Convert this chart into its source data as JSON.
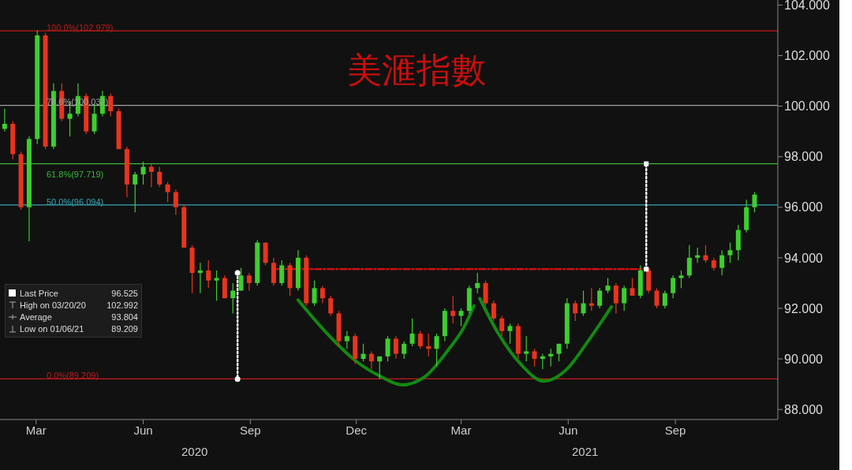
{
  "chart_data": {
    "type": "candlestick",
    "title": "美滙指數",
    "x": [
      "2020-02-17",
      "2020-02-24",
      "2020-03-02",
      "2020-03-09",
      "2020-03-16",
      "2020-03-23",
      "2020-03-30",
      "2020-04-06",
      "2020-04-13",
      "2020-04-20",
      "2020-04-27",
      "2020-05-04",
      "2020-05-11",
      "2020-05-18",
      "2020-05-25",
      "2020-06-01",
      "2020-06-08",
      "2020-06-15",
      "2020-06-22",
      "2020-06-29",
      "2020-07-06",
      "2020-07-13",
      "2020-07-20",
      "2020-07-27",
      "2020-08-03",
      "2020-08-10",
      "2020-08-17",
      "2020-08-24",
      "2020-08-31",
      "2020-09-07",
      "2020-09-14",
      "2020-09-21",
      "2020-09-28",
      "2020-10-05",
      "2020-10-12",
      "2020-10-19",
      "2020-10-26",
      "2020-11-02",
      "2020-11-09",
      "2020-11-16",
      "2020-11-23",
      "2020-11-30",
      "2020-12-07",
      "2020-12-14",
      "2020-12-21",
      "2020-12-28",
      "2021-01-04",
      "2021-01-11",
      "2021-01-18",
      "2021-01-25",
      "2021-02-01",
      "2021-02-08",
      "2021-02-15",
      "2021-02-22",
      "2021-03-01",
      "2021-03-08",
      "2021-03-15",
      "2021-03-22",
      "2021-03-29",
      "2021-04-05",
      "2021-04-12",
      "2021-04-19",
      "2021-04-26",
      "2021-05-03",
      "2021-05-10",
      "2021-05-17",
      "2021-05-24",
      "2021-05-31",
      "2021-06-07",
      "2021-06-14",
      "2021-06-21",
      "2021-06-28",
      "2021-07-05",
      "2021-07-12",
      "2021-07-19",
      "2021-07-26",
      "2021-08-02",
      "2021-08-09",
      "2021-08-16",
      "2021-08-23",
      "2021-08-30",
      "2021-09-06",
      "2021-09-13",
      "2021-09-20",
      "2021-09-27",
      "2021-10-04",
      "2021-10-11",
      "2021-10-18",
      "2021-10-25",
      "2021-11-01",
      "2021-11-08",
      "2021-11-15",
      "2021-11-22"
    ],
    "ohlc": [
      [
        99.1,
        99.9,
        99.0,
        99.3
      ],
      [
        99.3,
        99.4,
        97.9,
        98.1
      ],
      [
        98.1,
        98.2,
        95.9,
        96.0
      ],
      [
        96.0,
        98.8,
        94.65,
        98.7
      ],
      [
        98.7,
        102.99,
        98.5,
        102.8
      ],
      [
        102.8,
        102.9,
        98.3,
        98.4
      ],
      [
        98.4,
        100.9,
        98.3,
        100.6
      ],
      [
        100.6,
        100.9,
        99.4,
        99.5
      ],
      [
        99.5,
        100.2,
        98.8,
        99.7
      ],
      [
        99.7,
        100.9,
        99.6,
        100.4
      ],
      [
        100.4,
        100.5,
        98.9,
        99.0
      ],
      [
        99.0,
        100.1,
        98.9,
        99.7
      ],
      [
        99.7,
        100.6,
        99.6,
        100.4
      ],
      [
        100.4,
        100.5,
        99.6,
        99.8
      ],
      [
        99.8,
        99.9,
        98.3,
        98.3
      ],
      [
        98.3,
        98.4,
        96.4,
        96.9
      ],
      [
        96.9,
        97.4,
        95.8,
        97.3
      ],
      [
        97.3,
        97.8,
        96.9,
        97.6
      ],
      [
        97.6,
        97.7,
        96.8,
        97.4
      ],
      [
        97.4,
        97.6,
        96.8,
        96.9
      ],
      [
        96.9,
        97.0,
        96.2,
        96.6
      ],
      [
        96.6,
        96.7,
        95.7,
        96.0
      ],
      [
        96.0,
        96.1,
        94.4,
        94.4
      ],
      [
        94.4,
        94.5,
        92.6,
        93.4
      ],
      [
        93.4,
        93.8,
        92.6,
        93.5
      ],
      [
        93.5,
        93.9,
        92.8,
        93.1
      ],
      [
        93.1,
        93.5,
        92.3,
        93.2
      ],
      [
        93.2,
        93.3,
        92.4,
        92.4
      ],
      [
        92.4,
        93.0,
        91.8,
        92.7
      ],
      [
        92.7,
        93.6,
        92.7,
        93.3
      ],
      [
        93.3,
        93.4,
        92.7,
        93.0
      ],
      [
        93.0,
        94.7,
        92.9,
        94.6
      ],
      [
        94.6,
        94.6,
        93.7,
        93.8
      ],
      [
        93.8,
        94.0,
        92.9,
        93.0
      ],
      [
        93.0,
        93.9,
        92.9,
        93.7
      ],
      [
        93.7,
        93.8,
        92.5,
        92.8
      ],
      [
        92.8,
        94.3,
        92.7,
        94.0
      ],
      [
        94.0,
        94.1,
        92.1,
        92.2
      ],
      [
        92.2,
        93.1,
        92.1,
        92.8
      ],
      [
        92.8,
        92.9,
        92.2,
        92.4
      ],
      [
        92.4,
        92.5,
        91.7,
        91.8
      ],
      [
        91.8,
        91.9,
        90.5,
        90.7
      ],
      [
        90.7,
        91.1,
        90.4,
        90.9
      ],
      [
        90.9,
        91.0,
        89.8,
        90.0
      ],
      [
        90.0,
        90.6,
        89.9,
        90.2
      ],
      [
        90.2,
        90.3,
        89.6,
        89.9
      ],
      [
        89.9,
        90.1,
        89.21,
        90.1
      ],
      [
        90.1,
        90.9,
        89.9,
        90.8
      ],
      [
        90.8,
        90.9,
        90.0,
        90.2
      ],
      [
        90.2,
        90.7,
        90.0,
        90.6
      ],
      [
        90.6,
        91.6,
        90.5,
        91.0
      ],
      [
        91.0,
        91.1,
        90.4,
        90.5
      ],
      [
        90.5,
        91.0,
        90.1,
        90.4
      ],
      [
        90.4,
        91.0,
        89.7,
        90.9
      ],
      [
        90.9,
        92.0,
        90.7,
        91.9
      ],
      [
        91.9,
        92.5,
        91.4,
        91.7
      ],
      [
        91.7,
        92.0,
        91.3,
        91.9
      ],
      [
        91.9,
        92.9,
        91.8,
        92.8
      ],
      [
        92.8,
        93.4,
        92.6,
        93.0
      ],
      [
        93.0,
        93.1,
        92.1,
        92.2
      ],
      [
        92.2,
        92.3,
        91.5,
        91.6
      ],
      [
        91.6,
        91.7,
        90.9,
        91.1
      ],
      [
        91.1,
        91.4,
        90.6,
        91.3
      ],
      [
        91.3,
        91.4,
        90.0,
        90.2
      ],
      [
        90.2,
        90.9,
        89.9,
        90.3
      ],
      [
        90.3,
        90.4,
        89.7,
        90.0
      ],
      [
        90.0,
        90.2,
        89.6,
        90.1
      ],
      [
        90.1,
        90.4,
        89.7,
        90.2
      ],
      [
        90.2,
        90.6,
        89.9,
        90.6
      ],
      [
        90.6,
        92.4,
        90.4,
        92.2
      ],
      [
        92.2,
        92.3,
        91.5,
        91.8
      ],
      [
        91.8,
        92.7,
        91.7,
        92.2
      ],
      [
        92.2,
        92.8,
        91.9,
        92.1
      ],
      [
        92.1,
        92.8,
        92.0,
        92.7
      ],
      [
        92.7,
        93.2,
        92.6,
        92.9
      ],
      [
        92.9,
        93.0,
        91.8,
        92.2
      ],
      [
        92.2,
        92.9,
        91.9,
        92.8
      ],
      [
        92.8,
        93.2,
        92.5,
        92.5
      ],
      [
        92.5,
        93.7,
        92.4,
        93.5
      ],
      [
        93.5,
        93.6,
        92.6,
        92.7
      ],
      [
        92.7,
        92.8,
        92.0,
        92.1
      ],
      [
        92.1,
        92.7,
        92.0,
        92.6
      ],
      [
        92.6,
        93.3,
        92.4,
        93.2
      ],
      [
        93.2,
        93.5,
        92.8,
        93.3
      ],
      [
        93.3,
        94.5,
        93.2,
        94.0
      ],
      [
        94.0,
        94.4,
        93.8,
        94.1
      ],
      [
        94.1,
        94.5,
        93.8,
        93.9
      ],
      [
        93.9,
        94.0,
        93.5,
        93.6
      ],
      [
        93.6,
        94.3,
        93.3,
        94.1
      ],
      [
        94.1,
        94.6,
        93.8,
        94.3
      ],
      [
        94.3,
        95.3,
        93.9,
        95.1
      ],
      [
        95.1,
        96.3,
        95.0,
        96.0
      ],
      [
        96.0,
        96.6,
        95.8,
        96.5
      ]
    ],
    "colors": [
      "#3ccf2e",
      "#e8341c",
      "#e8341c",
      "#3ccf2e",
      "#3ccf2e",
      "#e8341c",
      "#3ccf2e",
      "#e8341c",
      "#3ccf2e",
      "#3ccf2e",
      "#e8341c",
      "#3ccf2e",
      "#3ccf2e",
      "#e8341c",
      "#e8341c",
      "#e8341c",
      "#3ccf2e",
      "#3ccf2e",
      "#e8341c",
      "#e8341c",
      "#e8341c",
      "#e8341c",
      "#e8341c",
      "#e8341c",
      "#3ccf2e",
      "#e8341c",
      "#3ccf2e",
      "#e8341c",
      "#3ccf2e",
      "#3ccf2e",
      "#e8341c",
      "#3ccf2e",
      "#e8341c",
      "#e8341c",
      "#3ccf2e",
      "#e8341c",
      "#3ccf2e",
      "#e8341c",
      "#3ccf2e",
      "#e8341c",
      "#e8341c",
      "#e8341c",
      "#3ccf2e",
      "#e8341c",
      "#3ccf2e",
      "#e8341c",
      "#3ccf2e",
      "#3ccf2e",
      "#e8341c",
      "#3ccf2e",
      "#3ccf2e",
      "#e8341c",
      "#e8341c",
      "#3ccf2e",
      "#3ccf2e",
      "#e8341c",
      "#3ccf2e",
      "#3ccf2e",
      "#3ccf2e",
      "#e8341c",
      "#e8341c",
      "#e8341c",
      "#3ccf2e",
      "#e8341c",
      "#3ccf2e",
      "#e8341c",
      "#3ccf2e",
      "#3ccf2e",
      "#3ccf2e",
      "#3ccf2e",
      "#e8341c",
      "#3ccf2e",
      "#e8341c",
      "#3ccf2e",
      "#3ccf2e",
      "#e8341c",
      "#3ccf2e",
      "#e8341c",
      "#3ccf2e",
      "#e8341c",
      "#e8341c",
      "#3ccf2e",
      "#3ccf2e",
      "#3ccf2e",
      "#3ccf2e",
      "#3ccf2e",
      "#e8341c",
      "#e8341c",
      "#3ccf2e",
      "#3ccf2e",
      "#3ccf2e",
      "#3ccf2e",
      "#3ccf2e"
    ],
    "series": [
      {
        "type": "line",
        "x": [
          "2020-10-08",
          "2021-08-24"
        ],
        "values": [
          93.55,
          93.55
        ],
        "color": "#cc1111",
        "line_style": "dashed",
        "marker": "none"
      },
      {
        "type": "line",
        "x": [
          "2020-09-04",
          "2020-09-04"
        ],
        "values": [
          93.4,
          89.2
        ],
        "color": "#ffffff",
        "line_style": "dotted",
        "marker": "circle"
      },
      {
        "type": "line",
        "x": [
          "2021-08-21",
          "2021-08-21"
        ],
        "values": [
          93.55,
          97.72
        ],
        "color": "#ffffff",
        "line_style": "dotted",
        "marker": "square"
      },
      {
        "type": "line",
        "x": [
          "2020-10-26",
          "2020-11-20",
          "2020-12-15",
          "2021-01-05",
          "2021-01-23",
          "2021-02-12",
          "2021-03-03",
          "2021-03-18",
          "2021-03-26"
        ],
        "values": [
          92.33,
          91.0,
          89.9,
          89.3,
          88.97,
          89.3,
          90.3,
          91.3,
          92.1
        ],
        "color": "#128a12",
        "line_style": "solid",
        "marker": "none"
      },
      {
        "type": "line",
        "x": [
          "2021-03-31",
          "2021-04-16",
          "2021-05-05",
          "2021-05-25",
          "2021-06-14",
          "2021-07-02",
          "2021-07-22"
        ],
        "values": [
          92.39,
          91.0,
          89.8,
          89.12,
          89.6,
          90.7,
          92.06
        ],
        "color": "#128a12",
        "line_style": "solid",
        "marker": "none"
      }
    ],
    "ref_lines": [
      {
        "axis": "y",
        "value": 102.979,
        "label": "100.0%(102.979)",
        "color": "#c41a1a"
      },
      {
        "axis": "y",
        "value": 100.032,
        "label": "78.6%(100.032)",
        "color": "#a0a0a0"
      },
      {
        "axis": "y",
        "value": 97.719,
        "label": "61.8%(97.719)",
        "color": "#3cb83c"
      },
      {
        "axis": "y",
        "value": 96.094,
        "label": "50.0%(96.094)",
        "color": "#3aa6b8"
      },
      {
        "axis": "y",
        "value": 89.209,
        "label": "0.0%(89.209)",
        "color": "#c41a1a"
      }
    ],
    "annotations": [
      "2020",
      "2021",
      "Last Price",
      "96.525",
      "High on 03/20/20",
      "102.992",
      "Average",
      "93.804",
      "Low on 01/06/21",
      "89.209"
    ],
    "xlim": [
      "2020-02-13",
      "2021-12-12"
    ],
    "xticks": [
      {
        "value": "2020-03-15",
        "label": "Mar"
      },
      {
        "value": "2020-06-15",
        "label": "Jun"
      },
      {
        "value": "2020-09-15",
        "label": "Sep"
      },
      {
        "value": "2020-12-15",
        "label": "Dec"
      },
      {
        "value": "2021-03-15",
        "label": "Mar"
      },
      {
        "value": "2021-06-15",
        "label": "Jun"
      },
      {
        "value": "2021-09-15",
        "label": "Sep"
      }
    ],
    "ylim": [
      87.6,
      104.2
    ],
    "yticks": [
      {
        "value": 88,
        "label": "88.000"
      },
      {
        "value": 90,
        "label": "90.000"
      },
      {
        "value": 92,
        "label": "92.000"
      },
      {
        "value": 94,
        "label": "94.000"
      },
      {
        "value": 96,
        "label": "96.000"
      },
      {
        "value": 98,
        "label": "98.000"
      },
      {
        "value": 100,
        "label": "100.000"
      },
      {
        "value": 102,
        "label": "102.000"
      },
      {
        "value": 104,
        "label": "104.000"
      }
    ],
    "tick_labels": true
  }
}
